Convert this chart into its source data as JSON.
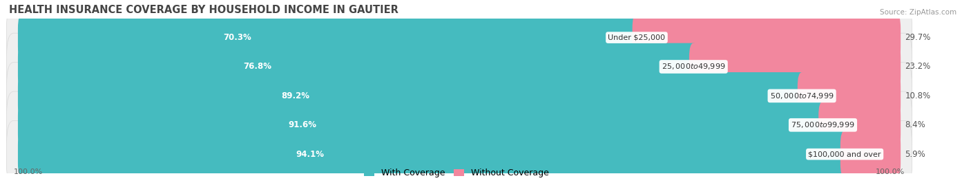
{
  "title": "HEALTH INSURANCE COVERAGE BY HOUSEHOLD INCOME IN GAUTIER",
  "source": "Source: ZipAtlas.com",
  "categories": [
    "Under $25,000",
    "$25,000 to $49,999",
    "$50,000 to $74,999",
    "$75,000 to $99,999",
    "$100,000 and over"
  ],
  "with_coverage": [
    70.3,
    76.8,
    89.2,
    91.6,
    94.1
  ],
  "without_coverage": [
    29.7,
    23.2,
    10.8,
    8.4,
    5.9
  ],
  "coverage_color": "#45BBBF",
  "no_coverage_color": "#F2879E",
  "bar_bg_color": "#EFEFEF",
  "bar_edge_color": "#DCDCDC",
  "background_color": "#FFFFFF",
  "title_fontsize": 10.5,
  "label_fontsize": 8.5,
  "pct_fontsize": 8.5,
  "legend_fontsize": 9,
  "bar_height": 0.62,
  "total_width": 100.0
}
